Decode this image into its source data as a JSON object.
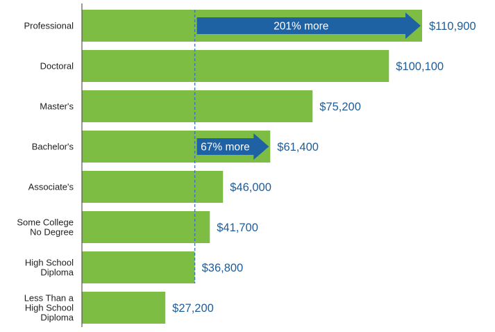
{
  "chart_data": {
    "type": "bar",
    "orientation": "horizontal",
    "categories": [
      [
        "Professional"
      ],
      [
        "Doctoral"
      ],
      [
        "Master's"
      ],
      [
        "Bachelor's"
      ],
      [
        "Associate's"
      ],
      [
        "Some College",
        "No Degree"
      ],
      [
        "High School",
        "Diploma"
      ],
      [
        "Less Than a",
        "High School",
        "Diploma"
      ]
    ],
    "values": [
      110900,
      100100,
      75200,
      61400,
      46000,
      41700,
      36800,
      27200
    ],
    "value_labels": [
      "$110,900",
      "$100,100",
      "$75,200",
      "$61,400",
      "$46,000",
      "$41,700",
      "$36,800",
      "$27,200"
    ],
    "title": "",
    "xlabel": "",
    "ylabel": "",
    "reference_line": {
      "category_index": 6,
      "value": 36800
    },
    "annotations": [
      {
        "text": "201% more",
        "from_value": 36800,
        "to_value": 110900,
        "category_index": 0
      },
      {
        "text": "67% more",
        "from_value": 36800,
        "to_value": 61400,
        "category_index": 3
      }
    ],
    "colors": {
      "bar": "#7dbd43",
      "arrow": "#1f62a4",
      "value_text": "#1f5c97",
      "reference_line": "#3b6fb6",
      "axis": "#555555"
    },
    "grid": false,
    "legend": "none"
  }
}
